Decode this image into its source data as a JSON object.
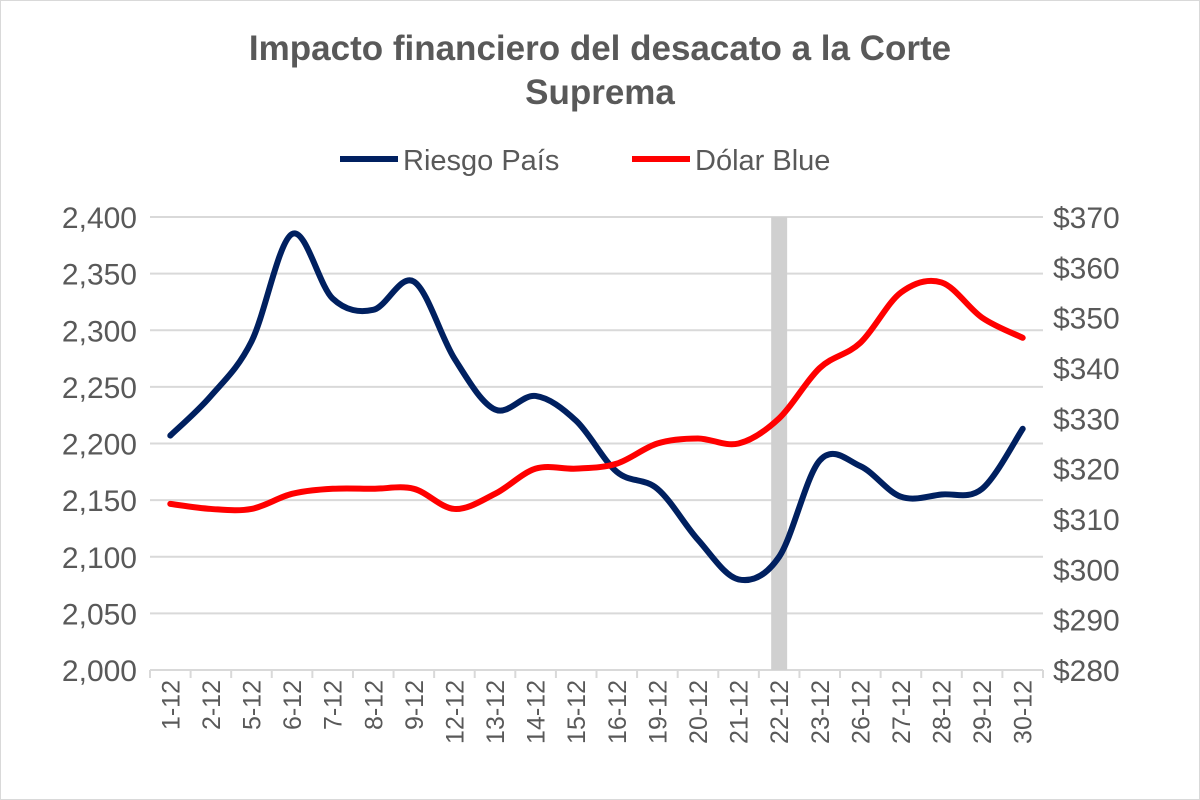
{
  "chart_data": {
    "type": "line",
    "title_lines": [
      "Impacto financiero del desacato a la Corte",
      "Suprema"
    ],
    "legend_position": "top",
    "categories": [
      "1-12",
      "2-12",
      "5-12",
      "6-12",
      "7-12",
      "8-12",
      "9-12",
      "12-12",
      "13-12",
      "14-12",
      "15-12",
      "16-12",
      "19-12",
      "20-12",
      "21-12",
      "22-12",
      "23-12",
      "26-12",
      "27-12",
      "28-12",
      "29-12",
      "30-12"
    ],
    "highlight_category": "22-12",
    "series": [
      {
        "name": "Riesgo País",
        "axis": "left",
        "color": "#002060",
        "values": [
          2207,
          2242,
          2290,
          2385,
          2328,
          2318,
          2343,
          2275,
          2230,
          2242,
          2220,
          2175,
          2160,
          2115,
          2080,
          2100,
          2185,
          2180,
          2153,
          2155,
          2160,
          2213
        ]
      },
      {
        "name": "Dólar Blue",
        "axis": "right",
        "color": "#ff0000",
        "values": [
          313,
          312,
          312,
          315,
          316,
          316,
          316,
          312,
          315,
          320,
          320,
          321,
          325,
          326,
          325,
          330,
          340,
          345,
          355,
          357,
          350,
          346
        ]
      }
    ],
    "y_left": {
      "min": 2000,
      "max": 2400,
      "step": 50,
      "ticks": [
        "2,000",
        "2,050",
        "2,100",
        "2,150",
        "2,200",
        "2,250",
        "2,300",
        "2,350",
        "2,400"
      ]
    },
    "y_right": {
      "min": 280,
      "max": 370,
      "step": 10,
      "ticks": [
        "$280",
        "$290",
        "$300",
        "$310",
        "$320",
        "$330",
        "$340",
        "$350",
        "$360",
        "$370"
      ]
    },
    "grid": true
  }
}
